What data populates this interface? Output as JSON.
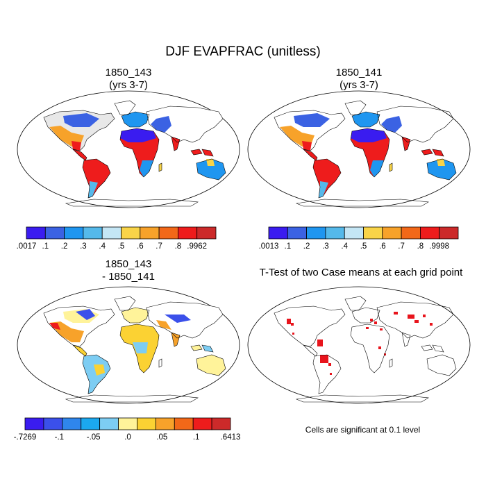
{
  "title": "DJF EVAPFRAC (unitless)",
  "panels": [
    {
      "id": "case1",
      "title_line1": "1850_143",
      "title_line2": "(yrs 3-7)"
    },
    {
      "id": "case2",
      "title_line1": "1850_141",
      "title_line2": "(yrs 3-7)"
    },
    {
      "id": "diff",
      "title_line1": "1850_143",
      "title_line2": "- 1850_141"
    },
    {
      "id": "ttest",
      "title_line1": "T-Test of two Case means at each grid point"
    }
  ],
  "colorbars": {
    "case1": {
      "labels": [
        ".0017",
        ".1",
        ".2",
        ".3",
        ".4",
        ".5",
        ".6",
        ".7",
        ".8",
        ".9962"
      ],
      "colors": [
        "#3a1cf0",
        "#3b62e3",
        "#1f96f0",
        "#55b9ea",
        "#c4e6f5",
        "#f9d448",
        "#f7a22a",
        "#f26818",
        "#ee1c1c",
        "#cc2a2a"
      ]
    },
    "case2": {
      "labels": [
        ".0013",
        ".1",
        ".2",
        ".3",
        ".4",
        ".5",
        ".6",
        ".7",
        ".8",
        ".9998"
      ],
      "colors": [
        "#3a1cf0",
        "#3b62e3",
        "#1f96f0",
        "#55b9ea",
        "#c4e6f5",
        "#f9d448",
        "#f7a22a",
        "#f26818",
        "#ee1c1c",
        "#cc2a2a"
      ]
    },
    "diff": {
      "labels": [
        "-.7269",
        "-.1",
        "-.05",
        ".0",
        ".05",
        ".1",
        ".6413"
      ],
      "colors": [
        "#3a1cf0",
        "#3b50ea",
        "#2f86ec",
        "#1ba8ef",
        "#7dcdf3",
        "#fff39a",
        "#fbd233",
        "#f7a22a",
        "#f26818",
        "#ee1c1c",
        "#cc2a2a"
      ]
    }
  },
  "note": "Cells are significant at 0.1 level",
  "colors": {
    "significant": "#e8141c",
    "coast": "#000000"
  }
}
